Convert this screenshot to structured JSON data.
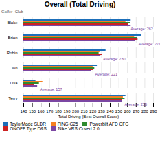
{
  "chart_data": {
    "type": "bar",
    "orientation": "horizontal",
    "title": "Overall (Total Driving)",
    "x_label": "Total Driving (Best Overall Score)",
    "y_label": "Golfer  Club",
    "categories": [
      "Blake",
      "Brian",
      "Robin",
      "Jon",
      "Lisa",
      "Terry"
    ],
    "series": [
      {
        "name": "TaylorMade SLDR",
        "color": "#1c6fba",
        "values": [
          264,
          276,
          235,
          225,
          154,
          258
        ]
      },
      {
        "name": "PING G25",
        "color": "#f58020",
        "values": [
          258,
          268,
          228,
          220,
          162,
          255
        ]
      },
      {
        "name": "Powerbilt AFD CFG",
        "color": "#2e8b2e",
        "values": [
          263,
          271,
          227,
          222,
          158,
          257
        ]
      },
      {
        "name": "ONOFF Type D&S",
        "color": "#cc2222",
        "values": [
          261,
          272,
          231,
          221,
          152,
          254
        ]
      },
      {
        "name": "Nike VRS Covert 2.0",
        "color": "#7b47a3",
        "values": [
          264,
          269,
          229,
          218,
          156,
          254
        ]
      }
    ],
    "annotations": [
      {
        "text": "Average: 262",
        "category": "Blake",
        "x": 262,
        "color": "#7b47a3"
      },
      {
        "text": "Average: 271",
        "category": "Brian",
        "x": 271,
        "color": "#7b47a3"
      },
      {
        "text": "Average: 230",
        "category": "Robin",
        "x": 230,
        "color": "#7b47a3"
      },
      {
        "text": "Average: 221",
        "category": "Jon",
        "x": 221,
        "color": "#7b47a3"
      },
      {
        "text": "Average: 157",
        "category": "Lisa",
        "x": 157,
        "color": "#7b47a3"
      },
      {
        "text": "Average: 255",
        "category": "Terry",
        "x": 255,
        "color": "#7b47a3"
      }
    ],
    "xlim": [
      140,
      290
    ],
    "xticks": [
      140,
      150,
      160,
      170,
      180,
      190,
      200,
      210,
      220,
      230,
      240,
      250,
      260,
      270,
      280,
      290
    ],
    "grid": true,
    "legend": "bottom"
  }
}
